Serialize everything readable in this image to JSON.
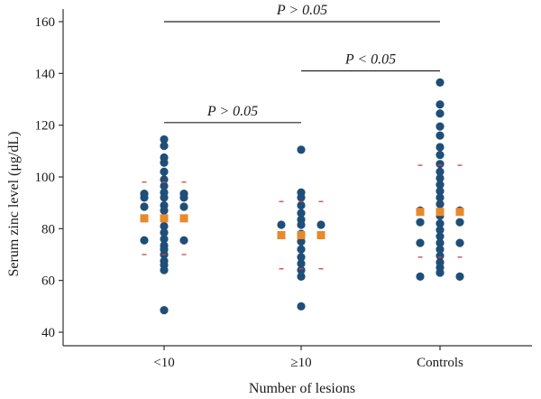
{
  "chart_data": {
    "type": "scatter",
    "title": "",
    "xlabel": "Number of lesions",
    "ylabel": "Serum zinc level (μg/dL)",
    "ylim": [
      40,
      160
    ],
    "yticks": [
      40,
      60,
      80,
      100,
      120,
      140,
      160
    ],
    "categories": [
      "<10",
      "≥10",
      "Controls"
    ],
    "grid": false,
    "legend": "none",
    "colors": {
      "points": "#1f4e79",
      "mean": "#e8892c",
      "sd": "#c8473f"
    },
    "groups": [
      {
        "category": "<10",
        "points": [
          {
            "offset": 0,
            "y": 114.5
          },
          {
            "offset": 0,
            "y": 112
          },
          {
            "offset": 0,
            "y": 107.5
          },
          {
            "offset": 0,
            "y": 105.5
          },
          {
            "offset": 0,
            "y": 102
          },
          {
            "offset": 0,
            "y": 99
          },
          {
            "offset": 0,
            "y": 96.5
          },
          {
            "offset": 0,
            "y": 94
          },
          {
            "offset": 0,
            "y": 92
          },
          {
            "offset": 0,
            "y": 89
          },
          {
            "offset": 0,
            "y": 87
          },
          {
            "offset": 0,
            "y": 81
          },
          {
            "offset": 0,
            "y": 78.5
          },
          {
            "offset": 0,
            "y": 76
          },
          {
            "offset": 0,
            "y": 73.5
          },
          {
            "offset": 0,
            "y": 72
          },
          {
            "offset": 0,
            "y": 70
          },
          {
            "offset": 0,
            "y": 67.5
          },
          {
            "offset": 0,
            "y": 66
          },
          {
            "offset": 0,
            "y": 64
          },
          {
            "offset": 0,
            "y": 48.5
          },
          {
            "offset": -1,
            "y": 93.5
          },
          {
            "offset": -1,
            "y": 92
          },
          {
            "offset": -1,
            "y": 88.5
          },
          {
            "offset": -1,
            "y": 75.5
          },
          {
            "offset": 1,
            "y": 93.5
          },
          {
            "offset": 1,
            "y": 92
          },
          {
            "offset": 1,
            "y": 88.5
          },
          {
            "offset": 1,
            "y": 75.5
          }
        ],
        "mean": 84,
        "sd_upper": 98,
        "sd_lower": 70
      },
      {
        "category": "≥10",
        "points": [
          {
            "offset": 0,
            "y": 110.5
          },
          {
            "offset": 0,
            "y": 94
          },
          {
            "offset": 0,
            "y": 92
          },
          {
            "offset": 0,
            "y": 89
          },
          {
            "offset": 0,
            "y": 86
          },
          {
            "offset": 0,
            "y": 83.5
          },
          {
            "offset": 0,
            "y": 81.5
          },
          {
            "offset": 0,
            "y": 78
          },
          {
            "offset": 0,
            "y": 75
          },
          {
            "offset": 0,
            "y": 72
          },
          {
            "offset": 0,
            "y": 69
          },
          {
            "offset": 0,
            "y": 66.5
          },
          {
            "offset": 0,
            "y": 64
          },
          {
            "offset": 0,
            "y": 61.5
          },
          {
            "offset": 0,
            "y": 50
          },
          {
            "offset": -1,
            "y": 81.5
          },
          {
            "offset": 1,
            "y": 81.5
          }
        ],
        "mean": 77.5,
        "sd_upper": 90.5,
        "sd_lower": 64.5
      },
      {
        "category": "Controls",
        "points": [
          {
            "offset": 0,
            "y": 136.5
          },
          {
            "offset": 0,
            "y": 128
          },
          {
            "offset": 0,
            "y": 124.5
          },
          {
            "offset": 0,
            "y": 119.5
          },
          {
            "offset": 0,
            "y": 116
          },
          {
            "offset": 0,
            "y": 111.5
          },
          {
            "offset": 0,
            "y": 108.5
          },
          {
            "offset": 0,
            "y": 105
          },
          {
            "offset": 0,
            "y": 102
          },
          {
            "offset": 0,
            "y": 99.5
          },
          {
            "offset": 0,
            "y": 97
          },
          {
            "offset": 0,
            "y": 94.5
          },
          {
            "offset": 0,
            "y": 92
          },
          {
            "offset": 0,
            "y": 89.5
          },
          {
            "offset": 0,
            "y": 85
          },
          {
            "offset": 0,
            "y": 82
          },
          {
            "offset": 0,
            "y": 79.5
          },
          {
            "offset": 0,
            "y": 77
          },
          {
            "offset": 0,
            "y": 74.5
          },
          {
            "offset": 0,
            "y": 72
          },
          {
            "offset": 0,
            "y": 69.5
          },
          {
            "offset": 0,
            "y": 67
          },
          {
            "offset": 0,
            "y": 65
          },
          {
            "offset": 0,
            "y": 63
          },
          {
            "offset": -1,
            "y": 87
          },
          {
            "offset": -1,
            "y": 82.5
          },
          {
            "offset": -1,
            "y": 74.5
          },
          {
            "offset": -1,
            "y": 61.5
          },
          {
            "offset": 1,
            "y": 87
          },
          {
            "offset": 1,
            "y": 82.5
          },
          {
            "offset": 1,
            "y": 74.5
          },
          {
            "offset": 1,
            "y": 61.5
          }
        ],
        "mean": 86.5,
        "sd_upper": 104.5,
        "sd_lower": 69
      }
    ],
    "annotations": [
      {
        "text": "P > 0.05",
        "from": "<10",
        "to": "Controls",
        "y": 160
      },
      {
        "text": "P < 0.05",
        "from": "≥10",
        "to": "Controls",
        "y": 141
      },
      {
        "text": "P > 0.05",
        "from": "<10",
        "to": "≥10",
        "y": 121
      }
    ]
  }
}
